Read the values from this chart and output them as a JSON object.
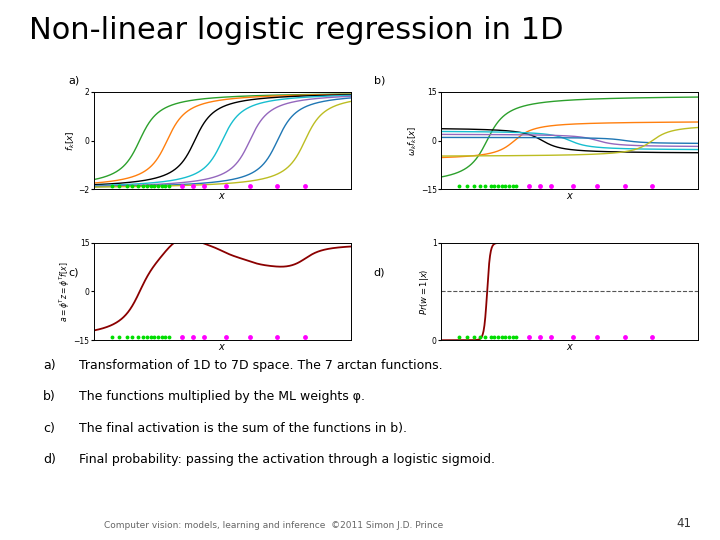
{
  "title": "Non-linear logistic regression in 1D",
  "title_fontsize": 22,
  "title_fontweight": "normal",
  "background_color": "#ffffff",
  "subplot_labels": [
    "a)",
    "b)",
    "c)",
    "d)"
  ],
  "x_range": [
    -7,
    7
  ],
  "n_arctan": 7,
  "arctan_centers": [
    -4.5,
    -3.0,
    -1.5,
    0.0,
    1.5,
    3.0,
    4.5
  ],
  "arctan_scale": 0.8,
  "arctan_amplitude": 2.0,
  "colors_a": [
    "#2ca02c",
    "#ff7f0e",
    "#000000",
    "#17becf",
    "#9467bd",
    "#1f77b4",
    "#bcbd22"
  ],
  "weights": [
    7.0,
    3.0,
    -2.0,
    -1.5,
    -1.0,
    -0.5,
    2.5
  ],
  "ylim_a": [
    -2,
    2
  ],
  "ylim_b": [
    -15,
    15
  ],
  "ylim_c": [
    -15,
    15
  ],
  "ylim_d": [
    0,
    1
  ],
  "data_class0": [
    -6.0,
    -5.6,
    -5.2,
    -4.9,
    -4.6,
    -4.3,
    -4.1,
    -3.9,
    -3.7,
    -3.5,
    -3.3,
    -3.1,
    -2.9
  ],
  "data_class1": [
    -2.2,
    -1.6,
    -1.0,
    0.2,
    1.5,
    3.0,
    4.5
  ],
  "footer": "Computer vision: models, learning and inference  ©2011 Simon J.D. Prince",
  "page_number": "41"
}
